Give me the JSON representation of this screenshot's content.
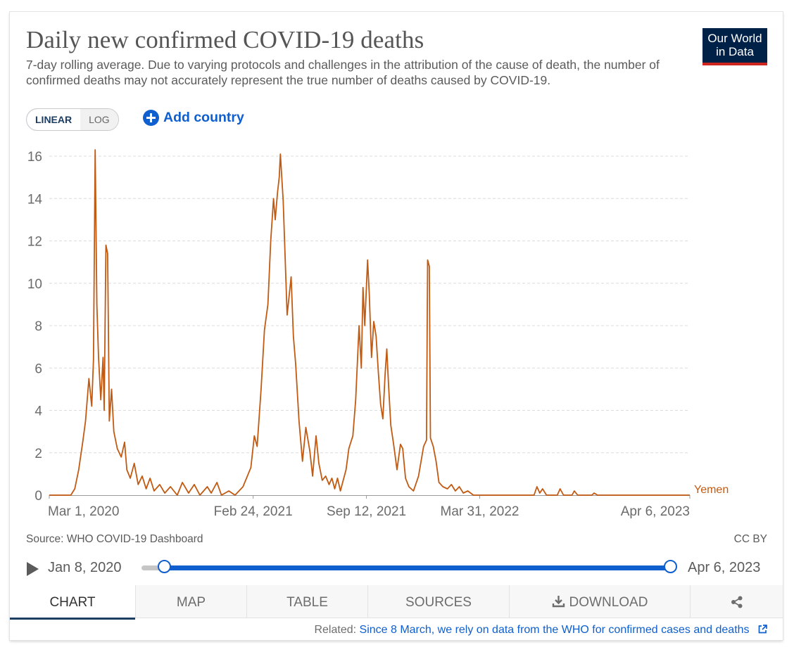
{
  "header": {
    "title": "Daily new confirmed COVID-19 deaths",
    "subtitle": "7-day rolling average. Due to varying protocols and challenges in the attribution of the cause of death, the number of confirmed deaths may not accurately represent the true number of deaths caused by COVID-19.",
    "logo_line1": "Our World",
    "logo_line2": "in Data"
  },
  "controls": {
    "linear_label": "LINEAR",
    "log_label": "LOG",
    "active_scale": "linear",
    "add_country_label": "Add country"
  },
  "colors": {
    "series": "#c15a13",
    "accent": "#0f5fce",
    "logo_bg": "#002147",
    "logo_stripe": "#ce261e"
  },
  "chart_data": {
    "type": "line",
    "title": "Daily new confirmed COVID-19 deaths",
    "xlabel": "",
    "ylabel": "",
    "x_domain": [
      "2020-03-01",
      "2023-04-06"
    ],
    "ylim": [
      0,
      16
    ],
    "y_ticks": [
      0,
      2,
      4,
      6,
      8,
      10,
      12,
      14,
      16
    ],
    "x_ticks": [
      {
        "date": "2020-03-01",
        "label": "Mar 1, 2020"
      },
      {
        "date": "2021-02-24",
        "label": "Feb 24, 2021"
      },
      {
        "date": "2021-09-12",
        "label": "Sep 12, 2021"
      },
      {
        "date": "2022-03-31",
        "label": "Mar 31, 2022"
      },
      {
        "date": "2023-04-06",
        "label": "Apr 6, 2023"
      }
    ],
    "grid": "horizontal dashed",
    "legend": "line end label",
    "series": [
      {
        "name": "Yemen",
        "points": [
          [
            "2020-03-01",
            0
          ],
          [
            "2020-04-08",
            0
          ],
          [
            "2020-04-15",
            0.3
          ],
          [
            "2020-04-22",
            1.2
          ],
          [
            "2020-04-29",
            2.5
          ],
          [
            "2020-05-04",
            3.5
          ],
          [
            "2020-05-10",
            5.5
          ],
          [
            "2020-05-15",
            4.2
          ],
          [
            "2020-05-18",
            6.4
          ],
          [
            "2020-05-21",
            16.3
          ],
          [
            "2020-05-24",
            9.0
          ],
          [
            "2020-05-27",
            6.5
          ],
          [
            "2020-05-31",
            4.5
          ],
          [
            "2020-06-04",
            6.5
          ],
          [
            "2020-06-06",
            4.0
          ],
          [
            "2020-06-09",
            11.8
          ],
          [
            "2020-06-12",
            11.4
          ],
          [
            "2020-06-15",
            3.5
          ],
          [
            "2020-06-19",
            5.0
          ],
          [
            "2020-06-23",
            3.0
          ],
          [
            "2020-06-29",
            2.2
          ],
          [
            "2020-07-06",
            1.8
          ],
          [
            "2020-07-12",
            2.5
          ],
          [
            "2020-07-16",
            1.2
          ],
          [
            "2020-07-22",
            0.8
          ],
          [
            "2020-07-29",
            1.5
          ],
          [
            "2020-08-05",
            0.5
          ],
          [
            "2020-08-12",
            0.9
          ],
          [
            "2020-08-19",
            0.3
          ],
          [
            "2020-08-26",
            0.8
          ],
          [
            "2020-09-02",
            0.2
          ],
          [
            "2020-09-12",
            0.5
          ],
          [
            "2020-09-21",
            0.1
          ],
          [
            "2020-10-01",
            0.4
          ],
          [
            "2020-10-13",
            0
          ],
          [
            "2020-10-22",
            0.6
          ],
          [
            "2020-11-02",
            0.1
          ],
          [
            "2020-11-12",
            0.5
          ],
          [
            "2020-11-22",
            0
          ],
          [
            "2020-12-05",
            0.4
          ],
          [
            "2020-12-12",
            0.1
          ],
          [
            "2020-12-22",
            0.6
          ],
          [
            "2020-12-30",
            0
          ],
          [
            "2021-01-12",
            0.2
          ],
          [
            "2021-01-23",
            0
          ],
          [
            "2021-02-06",
            0.4
          ],
          [
            "2021-02-20",
            1.3
          ],
          [
            "2021-02-26",
            2.8
          ],
          [
            "2021-03-03",
            2.3
          ],
          [
            "2021-03-10",
            5.0
          ],
          [
            "2021-03-16",
            7.8
          ],
          [
            "2021-03-22",
            9.0
          ],
          [
            "2021-03-27",
            12.0
          ],
          [
            "2021-04-01",
            14.0
          ],
          [
            "2021-04-04",
            13.0
          ],
          [
            "2021-04-08",
            14.3
          ],
          [
            "2021-04-11",
            15.0
          ],
          [
            "2021-04-13",
            16.1
          ],
          [
            "2021-04-18",
            13.9
          ],
          [
            "2021-04-25",
            8.5
          ],
          [
            "2021-05-02",
            10.3
          ],
          [
            "2021-05-06",
            7.5
          ],
          [
            "2021-05-10",
            6.2
          ],
          [
            "2021-05-16",
            3.5
          ],
          [
            "2021-05-22",
            1.6
          ],
          [
            "2021-05-28",
            3.2
          ],
          [
            "2021-06-04",
            2.1
          ],
          [
            "2021-06-09",
            0.9
          ],
          [
            "2021-06-15",
            2.8
          ],
          [
            "2021-06-20",
            1.5
          ],
          [
            "2021-06-26",
            0.7
          ],
          [
            "2021-07-02",
            0.9
          ],
          [
            "2021-07-08",
            0.5
          ],
          [
            "2021-07-13",
            0.8
          ],
          [
            "2021-07-18",
            0.3
          ],
          [
            "2021-07-23",
            0.8
          ],
          [
            "2021-07-28",
            0.2
          ],
          [
            "2021-08-02",
            0.7
          ],
          [
            "2021-08-07",
            1.2
          ],
          [
            "2021-08-12",
            2.2
          ],
          [
            "2021-08-19",
            2.8
          ],
          [
            "2021-08-24",
            4.5
          ],
          [
            "2021-08-30",
            8.0
          ],
          [
            "2021-09-03",
            6.0
          ],
          [
            "2021-09-06",
            9.8
          ],
          [
            "2021-09-09",
            8.0
          ],
          [
            "2021-09-14",
            11.1
          ],
          [
            "2021-09-17",
            9.5
          ],
          [
            "2021-09-21",
            6.5
          ],
          [
            "2021-09-25",
            8.2
          ],
          [
            "2021-09-29",
            7.5
          ],
          [
            "2021-10-03",
            5.8
          ],
          [
            "2021-10-07",
            4.3
          ],
          [
            "2021-10-11",
            3.6
          ],
          [
            "2021-10-15",
            5.7
          ],
          [
            "2021-10-18",
            6.9
          ],
          [
            "2021-10-21",
            5.2
          ],
          [
            "2021-10-25",
            3.3
          ],
          [
            "2021-10-30",
            2.4
          ],
          [
            "2021-11-05",
            1.2
          ],
          [
            "2021-11-11",
            2.4
          ],
          [
            "2021-11-15",
            2.2
          ],
          [
            "2021-11-20",
            0.8
          ],
          [
            "2021-11-26",
            0.4
          ],
          [
            "2021-12-04",
            0.2
          ],
          [
            "2021-12-13",
            0.9
          ],
          [
            "2021-12-22",
            2.3
          ],
          [
            "2021-12-27",
            2.6
          ],
          [
            "2021-12-29",
            11.1
          ],
          [
            "2022-01-01",
            10.8
          ],
          [
            "2022-01-03",
            2.7
          ],
          [
            "2022-01-08",
            2.3
          ],
          [
            "2022-01-13",
            1.6
          ],
          [
            "2022-01-18",
            0.6
          ],
          [
            "2022-01-25",
            0.4
          ],
          [
            "2022-02-02",
            0.3
          ],
          [
            "2022-02-09",
            0.5
          ],
          [
            "2022-02-16",
            0.2
          ],
          [
            "2022-02-23",
            0.4
          ],
          [
            "2022-03-02",
            0.1
          ],
          [
            "2022-03-10",
            0.2
          ],
          [
            "2022-03-20",
            0
          ],
          [
            "2022-04-12",
            0
          ],
          [
            "2022-07-05",
            0
          ],
          [
            "2022-07-10",
            0.4
          ],
          [
            "2022-07-15",
            0.1
          ],
          [
            "2022-07-20",
            0.3
          ],
          [
            "2022-07-27",
            0
          ],
          [
            "2022-08-15",
            0
          ],
          [
            "2022-08-20",
            0.3
          ],
          [
            "2022-08-26",
            0
          ],
          [
            "2022-09-10",
            0
          ],
          [
            "2022-09-14",
            0.2
          ],
          [
            "2022-09-20",
            0
          ],
          [
            "2022-10-15",
            0
          ],
          [
            "2022-10-19",
            0.1
          ],
          [
            "2022-10-25",
            0
          ],
          [
            "2023-04-06",
            0
          ]
        ]
      }
    ]
  },
  "footer": {
    "source": "Source: WHO COVID-19 Dashboard",
    "license": "CC BY"
  },
  "timeline": {
    "start_label": "Jan 8, 2020",
    "end_label": "Apr 6, 2023",
    "range_start": "2020-03-01",
    "range_end": "2023-04-06"
  },
  "tabs": [
    {
      "label": "CHART",
      "active": true
    },
    {
      "label": "MAP",
      "active": false
    },
    {
      "label": "TABLE",
      "active": false
    },
    {
      "label": "SOURCES",
      "active": false
    },
    {
      "label": "DOWNLOAD",
      "active": false
    },
    {
      "label": "",
      "active": false
    }
  ],
  "related": {
    "prefix": "Related:",
    "link_text": "Since 8 March, we rely on data from the WHO for confirmed cases and deaths"
  }
}
